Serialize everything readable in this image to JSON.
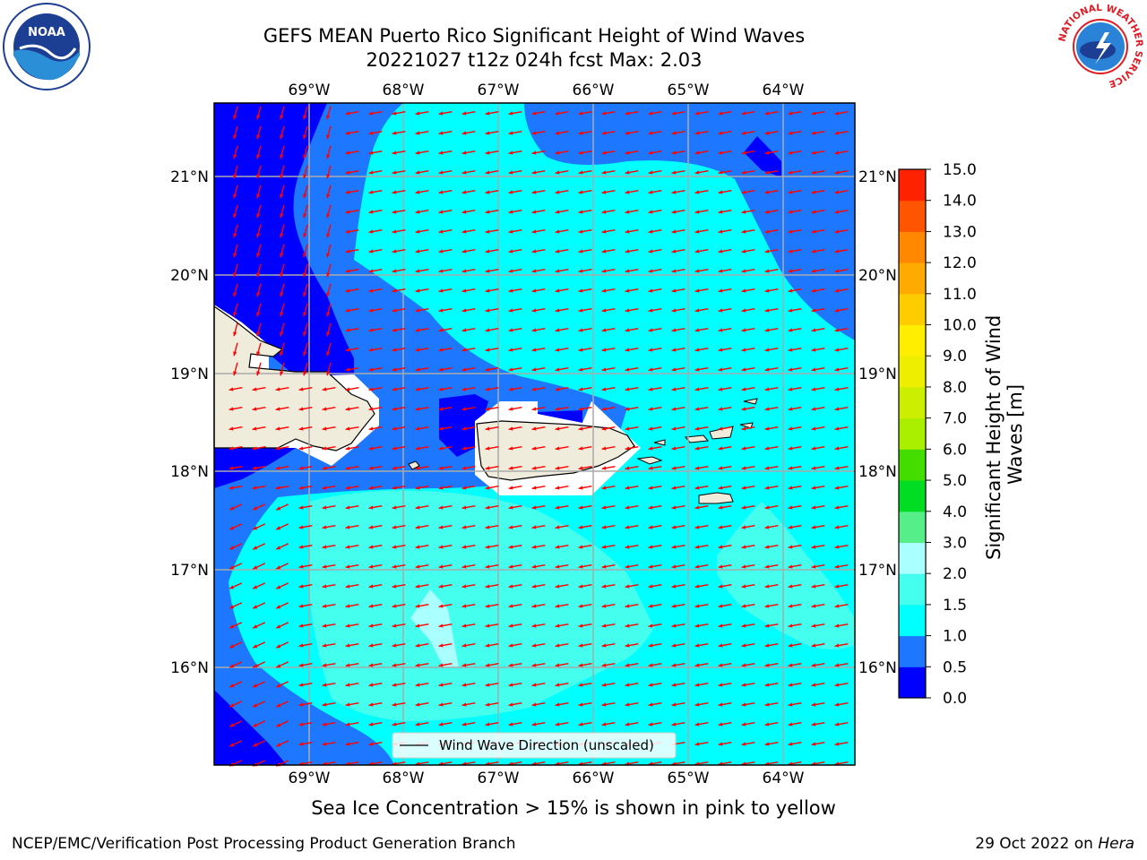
{
  "header": {
    "title_line1": "GEFS MEAN Puerto Rico Significant Height of Wind Waves",
    "title_line2": "20221027 t12z 024h fcst   Max: 2.03"
  },
  "logos": {
    "left": "NOAA",
    "left_ring_text": "NATIONAL OCEANIC AND ATMOSPHERIC ADMINISTRATION · U.S. DEPARTMENT OF COMMERCE",
    "right_ring_text": "NATIONAL WEATHER SERVICE"
  },
  "map": {
    "lon_labels": [
      "69°W",
      "68°W",
      "67°W",
      "66°W",
      "65°W",
      "64°W"
    ],
    "lat_labels": [
      "21°N",
      "20°N",
      "19°N",
      "18°N",
      "17°N",
      "16°N"
    ],
    "legend_label": "Wind Wave Direction (unscaled)",
    "arrow_color": "#ff0000",
    "land_color": "#efecdc"
  },
  "colorbar": {
    "label": "Significant Height of Wind Waves [m]",
    "ticks": [
      "0.0",
      "0.5",
      "1.0",
      "1.5",
      "2.0",
      "3.0",
      "4.0",
      "5.0",
      "6.0",
      "7.0",
      "8.0",
      "9.0",
      "10.0",
      "11.0",
      "12.0",
      "13.0",
      "14.0",
      "15.0"
    ],
    "colors": [
      "#0000ff",
      "#1e78ff",
      "#00ffff",
      "#44ffee",
      "#aaffff",
      "#55ee88",
      "#00dd22",
      "#44dd00",
      "#aaee00",
      "#ccee00",
      "#eeee00",
      "#ffee00",
      "#ffcc00",
      "#ffaa00",
      "#ff8800",
      "#ff5500",
      "#ff2200"
    ]
  },
  "footer": {
    "note": "Sea Ice Concentration > 15% is shown in pink to yellow",
    "left": "NCEP/EMC/Verification Post Processing Product Generation Branch",
    "right_date": "29 Oct 2022 on",
    "right_machine": "Hera"
  }
}
